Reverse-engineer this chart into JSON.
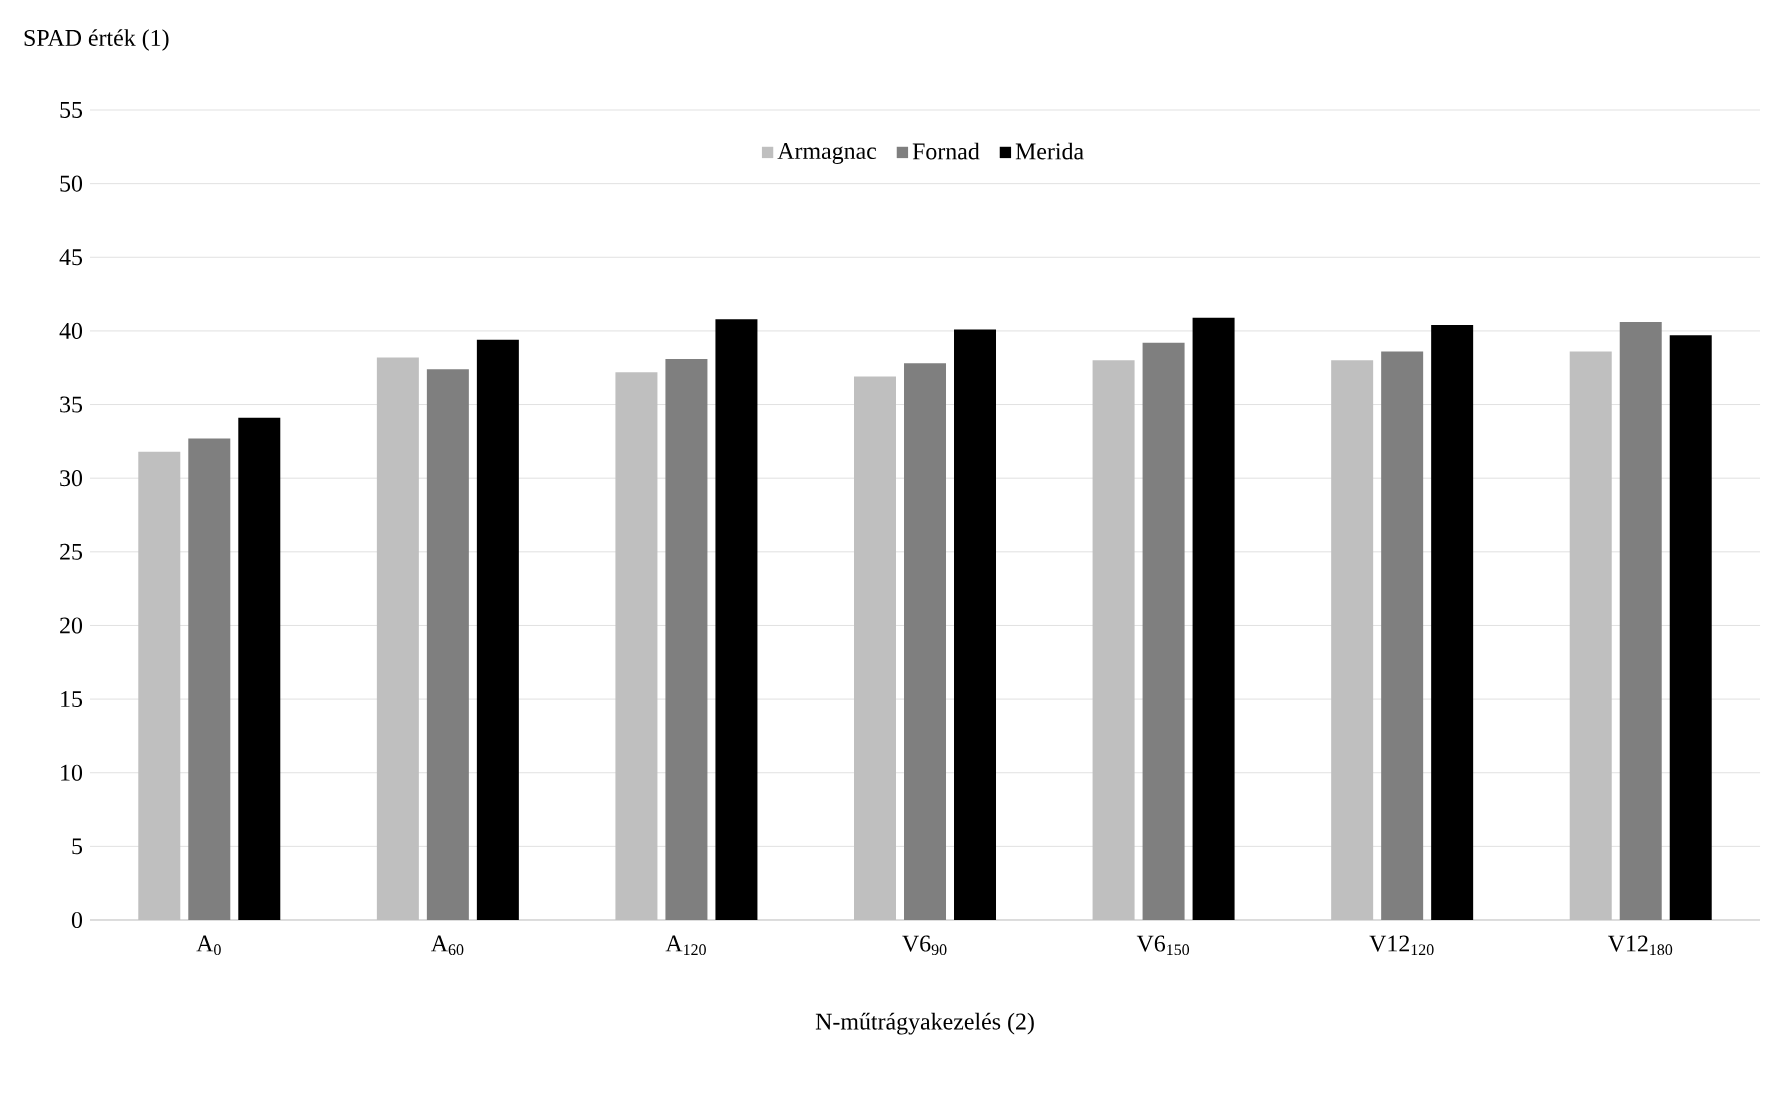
{
  "chart_data": {
    "type": "bar",
    "ylabel": "SPAD érték (1)",
    "xlabel": "N-műtrágyakezelés (2)",
    "categories": [
      "A$_{0}$",
      "A$_{60}$",
      "A$_{120}$",
      "V6$_{90}$",
      "V6$_{150}$",
      "V12$_{120}$",
      "V12$_{180}$"
    ],
    "series": [
      {
        "name": "Armagnac",
        "color": "#bfbfbf",
        "values": [
          31.8,
          38.2,
          37.2,
          36.9,
          38.0,
          38.0,
          38.6
        ]
      },
      {
        "name": "Fornad",
        "color": "#7f7f7f",
        "values": [
          32.7,
          37.4,
          38.1,
          37.8,
          39.2,
          38.6,
          40.6
        ]
      },
      {
        "name": "Merida",
        "color": "#000000",
        "values": [
          34.1,
          39.4,
          40.8,
          40.1,
          40.9,
          40.4,
          39.7
        ]
      }
    ],
    "ylim": [
      0,
      55
    ],
    "yticks": [
      0,
      5,
      10,
      15,
      20,
      25,
      30,
      35,
      40,
      45,
      50,
      55
    ],
    "grid": "y",
    "legend": "top"
  }
}
